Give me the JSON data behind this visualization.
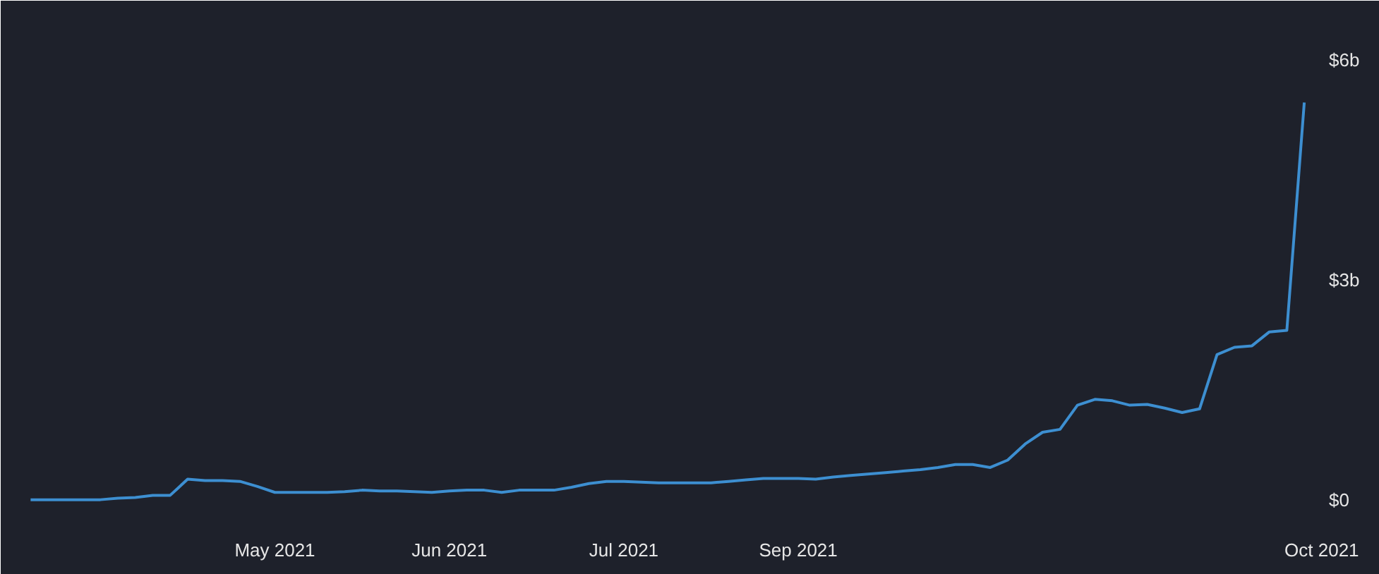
{
  "chart_data": {
    "type": "line",
    "categories": [
      null,
      null,
      null,
      null,
      null,
      null,
      null,
      null,
      null,
      null,
      null,
      null,
      null,
      null,
      "May 2021",
      null,
      null,
      null,
      null,
      null,
      null,
      null,
      null,
      null,
      "Jun 2021",
      null,
      null,
      null,
      null,
      null,
      null,
      null,
      null,
      null,
      "Jul 2021",
      null,
      null,
      null,
      null,
      null,
      null,
      null,
      null,
      null,
      "Sep 2021",
      null,
      null,
      null,
      null,
      null,
      null,
      null,
      null,
      null,
      null,
      null,
      null,
      null,
      null,
      null,
      null,
      null,
      null,
      null,
      null,
      null,
      null,
      null,
      null,
      null,
      null,
      null,
      null,
      null,
      "Oct 2021"
    ],
    "series": [
      {
        "color": "#3d8fd1",
        "values": [
          0,
          0,
          0,
          0,
          0,
          0.02,
          0.03,
          0.06,
          0.06,
          0.28,
          0.26,
          0.26,
          0.25,
          0.18,
          0.1,
          0.1,
          0.1,
          0.1,
          0.11,
          0.13,
          0.12,
          0.12,
          0.11,
          0.1,
          0.12,
          0.13,
          0.13,
          0.1,
          0.13,
          0.13,
          0.13,
          0.17,
          0.22,
          0.25,
          0.25,
          0.24,
          0.23,
          0.23,
          0.23,
          0.23,
          0.25,
          0.27,
          0.29,
          0.29,
          0.29,
          0.28,
          0.31,
          0.33,
          0.35,
          0.37,
          0.39,
          0.41,
          0.44,
          0.48,
          0.48,
          0.44,
          0.54,
          0.76,
          0.92,
          0.96,
          1.29,
          1.37,
          1.35,
          1.29,
          1.3,
          1.25,
          1.19,
          1.24,
          1.98,
          2.08,
          2.1,
          2.29,
          2.31,
          5.42,
          null
        ]
      }
    ],
    "ylim": [
      -0.35,
      6.81
    ],
    "yticks": [
      {
        "value": 0,
        "label": "$0"
      },
      {
        "value": 3,
        "label": "$3b"
      },
      {
        "value": 6,
        "label": "$6b"
      }
    ],
    "grid": false,
    "line_style": "solid"
  }
}
